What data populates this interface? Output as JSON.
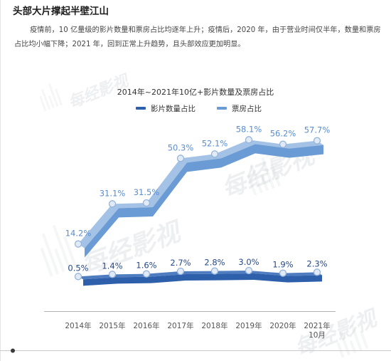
{
  "article": {
    "heading": "头部大片撑起半壁江山",
    "paragraph": "疫情前，10 亿量级的影片数量和票房占比均逐年上升；疫情后，2020 年，由于营业时间仅半年，数量和票房占比均小幅下降；2021 年，回到正常上升趋势，且头部效应更加明显。"
  },
  "watermark": "每经影视",
  "chart_data": {
    "type": "line",
    "title": "2014年~2021年10亿+影片数量及票房占比",
    "categories": [
      "2014年",
      "2015年",
      "2016年",
      "2017年",
      "2018年",
      "2019年",
      "2020年",
      "2021年\n10月"
    ],
    "series": [
      {
        "name": "影片数量占比",
        "values": [
          0.5,
          1.4,
          1.6,
          2.7,
          2.8,
          3.0,
          1.9,
          2.3
        ],
        "color": "#2d5fab",
        "face_color": "#4f7dc0",
        "label_color": "#27498a"
      },
      {
        "name": "票房占比",
        "values": [
          14.2,
          31.1,
          31.5,
          50.3,
          52.1,
          58.1,
          56.2,
          57.7
        ],
        "color": "#6a9bd4",
        "face_color": "#a3c2e6",
        "label_color": "#5a8dce"
      }
    ],
    "value_suffix": "%",
    "ylim": [
      0,
      60
    ],
    "grid": false,
    "legend": "top"
  }
}
